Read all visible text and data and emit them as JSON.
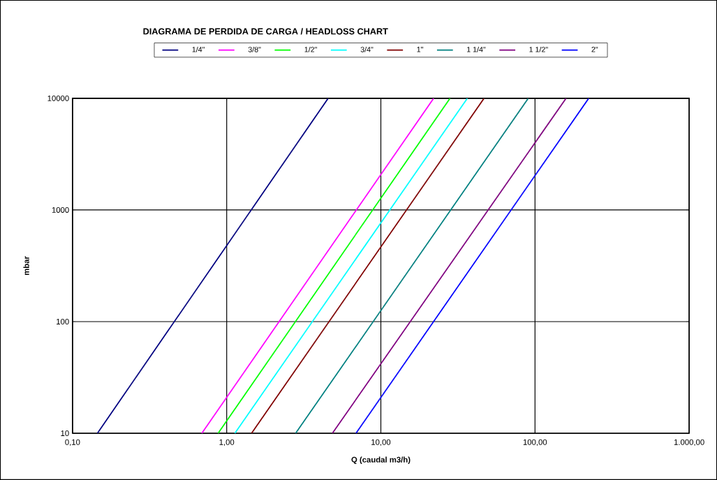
{
  "chart_data": {
    "type": "line",
    "title": "DIAGRAMA DE PERDIDA DE CARGA / HEADLOSS CHART",
    "xlabel": "Q (caudal m3/h)",
    "ylabel": "mbar",
    "log": "xy",
    "grid": true,
    "legend": "top",
    "xlim": [
      0.1,
      1000
    ],
    "ylim": [
      10,
      10000
    ],
    "xticks": [
      {
        "value": 0.1,
        "label": "0,10"
      },
      {
        "value": 1,
        "label": "1,00"
      },
      {
        "value": 10,
        "label": "10,00"
      },
      {
        "value": 100,
        "label": "100,00"
      },
      {
        "value": 1000,
        "label": "1.000,00"
      }
    ],
    "yticks": [
      10,
      100,
      1000,
      10000
    ],
    "series": [
      {
        "name": "1/4\"",
        "color": "#000080",
        "x": [
          0.145,
          4.55
        ],
        "values": [
          10,
          10000
        ]
      },
      {
        "name": "3/8\"",
        "color": "#ff00ff",
        "x": [
          0.69,
          22
        ],
        "values": [
          10,
          10000
        ]
      },
      {
        "name": "1/2\"",
        "color": "#00ff00",
        "x": [
          0.88,
          28.1
        ],
        "values": [
          10,
          10000
        ]
      },
      {
        "name": "3/4\"",
        "color": "#00ffff",
        "x": [
          1.13,
          36.4
        ],
        "values": [
          10,
          10000
        ]
      },
      {
        "name": "1\"",
        "color": "#800000",
        "x": [
          1.45,
          46.7
        ],
        "values": [
          10,
          10000
        ]
      },
      {
        "name": "1 1/4\"",
        "color": "#008080",
        "x": [
          2.8,
          90.4
        ],
        "values": [
          10,
          10000
        ]
      },
      {
        "name": "1 1/2\"",
        "color": "#800080",
        "x": [
          4.85,
          159
        ],
        "values": [
          10,
          10000
        ]
      },
      {
        "name": "2\"",
        "color": "#0000ff",
        "x": [
          6.9,
          223
        ],
        "values": [
          10,
          10000
        ]
      }
    ]
  }
}
